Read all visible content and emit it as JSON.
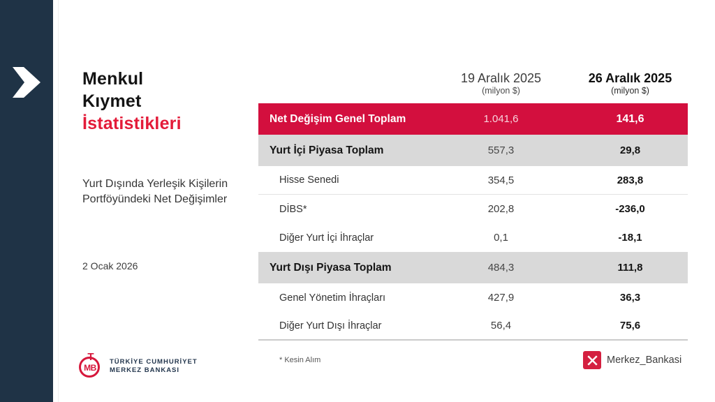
{
  "slide": {
    "title_lines": [
      "Menkul",
      "Kıymet"
    ],
    "title_accent": "İstatistikleri",
    "subtitle_lines": [
      "Yurt Dışında Yerleşik Kişilerin",
      "Portföyündeki Net Değişimler"
    ],
    "date": "2 Ocak 2026"
  },
  "table": {
    "columns": [
      {
        "label": "19 Aralık 2025",
        "sublabel": "(milyon $)",
        "bold": false
      },
      {
        "label": "26 Aralık 2025",
        "sublabel": "(milyon $)",
        "bold": true
      }
    ],
    "rows": [
      {
        "label": "Net Değişim Genel Toplam",
        "v1": "1.041,6",
        "v2": "141,6",
        "style": "highlight"
      },
      {
        "label": "Yurt İçi Piyasa Toplam",
        "v1": "557,3",
        "v2": "29,8",
        "style": "subtotal"
      },
      {
        "label": "Hisse Senedi",
        "v1": "354,5",
        "v2": "283,8",
        "style": "item underline"
      },
      {
        "label": "DİBS*",
        "v1": "202,8",
        "v2": "-236,0",
        "style": "item"
      },
      {
        "label": "Diğer Yurt İçi İhraçlar",
        "v1": "0,1",
        "v2": "-18,1",
        "style": "item"
      },
      {
        "label": "Yurt Dışı Piyasa Toplam",
        "v1": "484,3",
        "v2": "111,8",
        "style": "subtotal"
      },
      {
        "label": "Genel Yönetim İhraçları",
        "v1": "427,9",
        "v2": "36,3",
        "style": "item"
      },
      {
        "label": "Diğer Yurt Dışı İhraçlar",
        "v1": "56,4",
        "v2": "75,6",
        "style": "item last"
      }
    ],
    "footnote": "* Kesin Alım"
  },
  "footer": {
    "logo": {
      "emblem_top": "T",
      "emblem_bottom": "MB",
      "org_line1": "TÜRKİYE CUMHURİYET",
      "org_line2": "MERKEZ BANKASI"
    },
    "social": {
      "handle": "Merkez_Bankasi",
      "icon": "x-logo"
    }
  },
  "colors": {
    "sidebar_navy": "#1f3346",
    "highlight_red": "#d30f3e",
    "title_red": "#e31b39",
    "subtotal_gray": "#d9d9d9",
    "x_badge_red": "#d42040"
  }
}
